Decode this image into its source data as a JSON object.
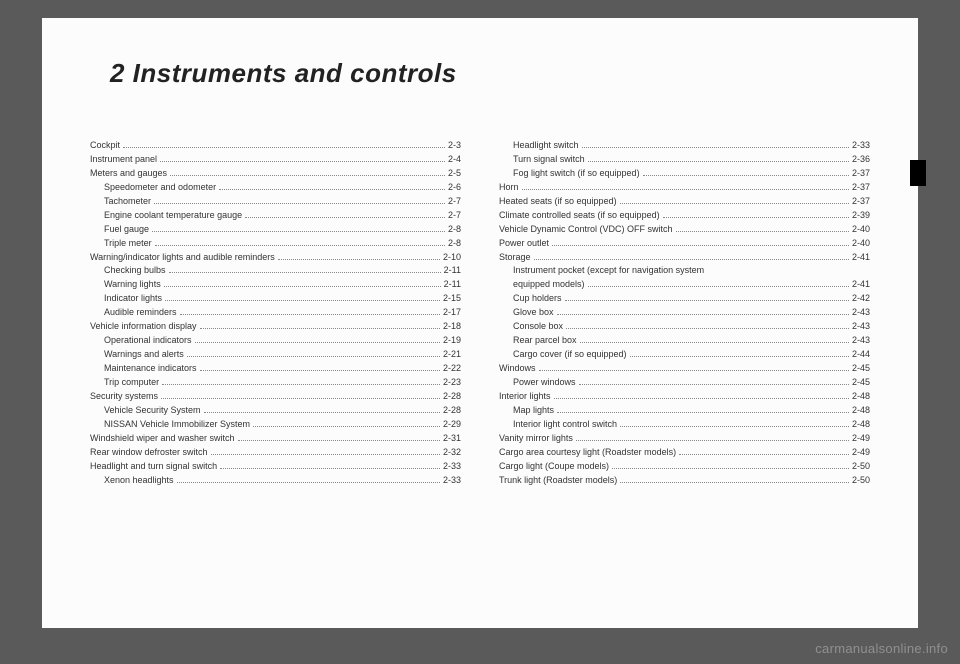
{
  "title": "2 Instruments and controls",
  "watermark": "carmanualsonline.info",
  "left": [
    {
      "label": "Cockpit",
      "page": "2-3",
      "indent": false
    },
    {
      "label": "Instrument panel",
      "page": "2-4",
      "indent": false
    },
    {
      "label": "Meters and gauges",
      "page": "2-5",
      "indent": false
    },
    {
      "label": "Speedometer and odometer",
      "page": "2-6",
      "indent": true
    },
    {
      "label": "Tachometer",
      "page": "2-7",
      "indent": true
    },
    {
      "label": "Engine coolant temperature gauge",
      "page": "2-7",
      "indent": true
    },
    {
      "label": "Fuel gauge",
      "page": "2-8",
      "indent": true
    },
    {
      "label": "Triple meter",
      "page": "2-8",
      "indent": true
    },
    {
      "label": "Warning/indicator lights and audible reminders",
      "page": "2-10",
      "indent": false
    },
    {
      "label": "Checking bulbs",
      "page": "2-11",
      "indent": true
    },
    {
      "label": "Warning lights",
      "page": "2-11",
      "indent": true
    },
    {
      "label": "Indicator lights",
      "page": "2-15",
      "indent": true
    },
    {
      "label": "Audible reminders",
      "page": "2-17",
      "indent": true
    },
    {
      "label": "Vehicle information display",
      "page": "2-18",
      "indent": false
    },
    {
      "label": "Operational indicators",
      "page": "2-19",
      "indent": true
    },
    {
      "label": "Warnings and alerts",
      "page": "2-21",
      "indent": true
    },
    {
      "label": "Maintenance indicators",
      "page": "2-22",
      "indent": true
    },
    {
      "label": "Trip computer",
      "page": "2-23",
      "indent": true
    },
    {
      "label": "Security systems",
      "page": "2-28",
      "indent": false
    },
    {
      "label": "Vehicle Security System",
      "page": "2-28",
      "indent": true
    },
    {
      "label": "NISSAN Vehicle Immobilizer System",
      "page": "2-29",
      "indent": true
    },
    {
      "label": "Windshield wiper and washer switch",
      "page": "2-31",
      "indent": false
    },
    {
      "label": "Rear window defroster switch",
      "page": "2-32",
      "indent": false
    },
    {
      "label": "Headlight and turn signal switch",
      "page": "2-33",
      "indent": false
    },
    {
      "label": "Xenon headlights",
      "page": "2-33",
      "indent": true
    }
  ],
  "right": [
    {
      "label": "Headlight switch",
      "page": "2-33",
      "indent": true
    },
    {
      "label": "Turn signal switch",
      "page": "2-36",
      "indent": true
    },
    {
      "label": "Fog light switch (if so equipped)",
      "page": "2-37",
      "indent": true
    },
    {
      "label": "Horn",
      "page": "2-37",
      "indent": false
    },
    {
      "label": "Heated seats (if so equipped)",
      "page": "2-37",
      "indent": false
    },
    {
      "label": "Climate controlled seats (if so equipped)",
      "page": "2-39",
      "indent": false
    },
    {
      "label": "Vehicle Dynamic Control (VDC) OFF switch",
      "page": "2-40",
      "indent": false
    },
    {
      "label": "Power outlet",
      "page": "2-40",
      "indent": false
    },
    {
      "label": "Storage",
      "page": "2-41",
      "indent": false
    },
    {
      "label": "Instrument pocket (except for navigation system",
      "page": "",
      "indent": true,
      "nowrap": true
    },
    {
      "label": "equipped models)",
      "page": "2-41",
      "indent": true
    },
    {
      "label": "Cup holders",
      "page": "2-42",
      "indent": true
    },
    {
      "label": "Glove box",
      "page": "2-43",
      "indent": true
    },
    {
      "label": "Console box",
      "page": "2-43",
      "indent": true
    },
    {
      "label": "Rear parcel box",
      "page": "2-43",
      "indent": true
    },
    {
      "label": "Cargo cover (if so equipped)",
      "page": "2-44",
      "indent": true
    },
    {
      "label": "Windows",
      "page": "2-45",
      "indent": false
    },
    {
      "label": "Power windows",
      "page": "2-45",
      "indent": true
    },
    {
      "label": "Interior lights",
      "page": "2-48",
      "indent": false
    },
    {
      "label": "Map lights",
      "page": "2-48",
      "indent": true
    },
    {
      "label": "Interior light control switch",
      "page": "2-48",
      "indent": true
    },
    {
      "label": "Vanity mirror lights",
      "page": "2-49",
      "indent": false
    },
    {
      "label": "Cargo area courtesy light (Roadster models)",
      "page": "2-49",
      "indent": false
    },
    {
      "label": "Cargo light (Coupe models)",
      "page": "2-50",
      "indent": false
    },
    {
      "label": "Trunk light (Roadster models)",
      "page": "2-50",
      "indent": false
    }
  ]
}
